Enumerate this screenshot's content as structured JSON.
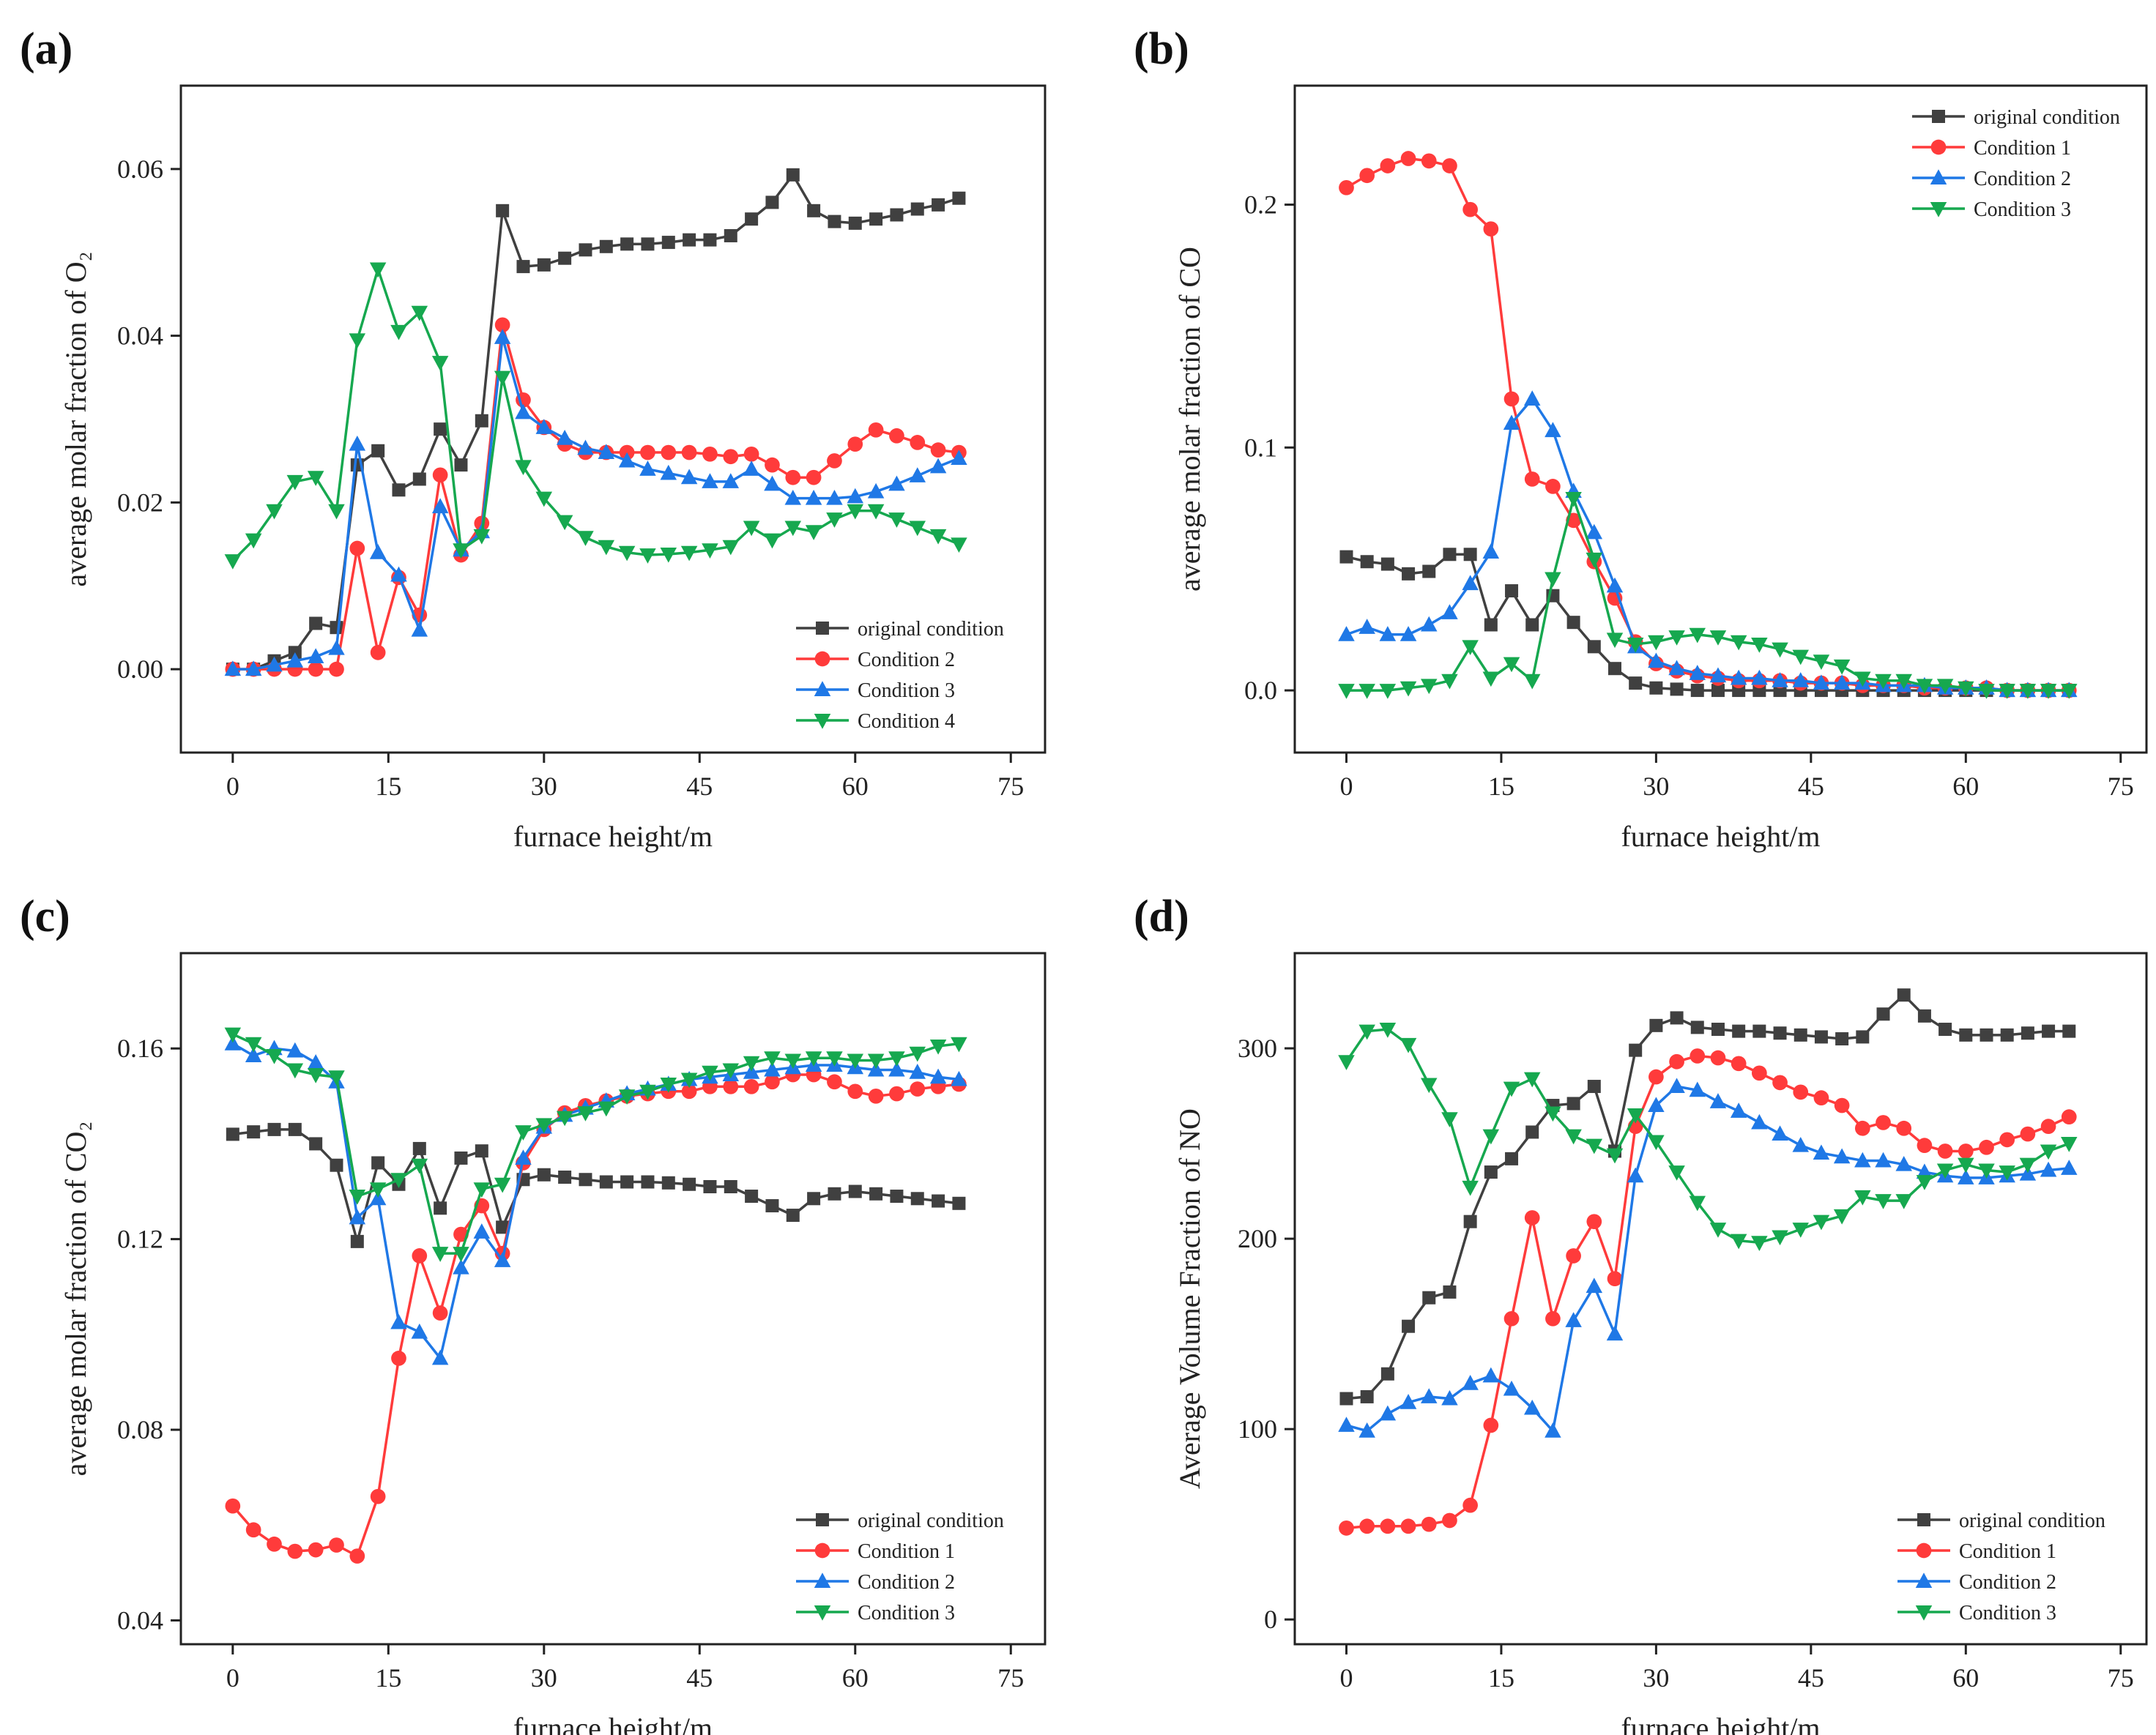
{
  "chart_data": [
    {
      "type": "line",
      "panel_label": "(a)",
      "xlabel": "furnace height/m",
      "ylabel": "average molar fraction of O₂",
      "xlim": [
        -5,
        78.3
      ],
      "ylim": [
        -0.01,
        0.07
      ],
      "xticks": [
        0,
        15,
        30,
        45,
        60,
        75
      ],
      "xtick_labels": [
        "0",
        "15",
        "30",
        "45",
        "60",
        "75"
      ],
      "yticks": [
        0,
        0.02,
        0.04,
        0.06
      ],
      "ytick_labels": [
        "0.00",
        "0.02",
        "0.04",
        "0.06"
      ],
      "legend_position": "bottom-right",
      "x": [
        0,
        2,
        4,
        6,
        8,
        10,
        12,
        14,
        16,
        18,
        20,
        22,
        24,
        26,
        28,
        30,
        32,
        34,
        36,
        38,
        40,
        42,
        44,
        46,
        48,
        50,
        52,
        54,
        56,
        58,
        60,
        62,
        64,
        66,
        68,
        70
      ],
      "series": [
        {
          "name": "original condition",
          "color": "#404040",
          "marker": "square",
          "values": [
            0,
            0,
            0.001,
            0.002,
            0.0055,
            0.005,
            0.0245,
            0.0262,
            0.0215,
            0.0228,
            0.0288,
            0.0245,
            0.0298,
            0.055,
            0.0483,
            0.0485,
            0.0493,
            0.0503,
            0.0507,
            0.051,
            0.051,
            0.0512,
            0.0515,
            0.0515,
            0.052,
            0.054,
            0.056,
            0.0593,
            0.055,
            0.0537,
            0.0535,
            0.054,
            0.0545,
            0.0552,
            0.0557,
            0.0565
          ]
        },
        {
          "name": "Condition 2",
          "color": "#ff3b3b",
          "marker": "circle",
          "values": [
            0,
            0,
            0,
            0,
            0,
            0,
            0.0145,
            0.002,
            0.011,
            0.0065,
            0.0233,
            0.0137,
            0.0175,
            0.0413,
            0.0323,
            0.029,
            0.027,
            0.026,
            0.026,
            0.026,
            0.026,
            0.026,
            0.026,
            0.0258,
            0.0255,
            0.0258,
            0.0245,
            0.023,
            0.023,
            0.025,
            0.027,
            0.0287,
            0.028,
            0.0272,
            0.0263,
            0.026
          ]
        },
        {
          "name": "Condition 3",
          "color": "#1f78e6",
          "marker": "triangle-up",
          "values": [
            0,
            0,
            0.0005,
            0.001,
            0.0015,
            0.0025,
            0.027,
            0.014,
            0.0113,
            0.0047,
            0.0195,
            0.0143,
            0.0165,
            0.0398,
            0.0308,
            0.029,
            0.0277,
            0.0265,
            0.026,
            0.025,
            0.024,
            0.0235,
            0.023,
            0.0225,
            0.0225,
            0.024,
            0.0222,
            0.0205,
            0.0205,
            0.0205,
            0.0207,
            0.0213,
            0.0222,
            0.0232,
            0.0243,
            0.0253
          ]
        },
        {
          "name": "Condition 4",
          "color": "#16a84f",
          "marker": "triangle-down",
          "values": [
            0.013,
            0.0155,
            0.019,
            0.0225,
            0.023,
            0.019,
            0.0395,
            0.048,
            0.0405,
            0.0428,
            0.0368,
            0.0143,
            0.016,
            0.035,
            0.0243,
            0.0205,
            0.0177,
            0.0158,
            0.0147,
            0.014,
            0.0137,
            0.0138,
            0.014,
            0.0143,
            0.0147,
            0.017,
            0.0155,
            0.017,
            0.0165,
            0.018,
            0.019,
            0.019,
            0.018,
            0.017,
            0.016,
            0.015
          ]
        }
      ]
    },
    {
      "type": "line",
      "panel_label": "(b)",
      "xlabel": "furnace height/m",
      "ylabel": "average molar fraction of CO",
      "xlim": [
        -5,
        77.5
      ],
      "ylim": [
        -0.0256,
        0.249
      ],
      "xticks": [
        0,
        15,
        30,
        45,
        60,
        75
      ],
      "xtick_labels": [
        "0",
        "15",
        "30",
        "45",
        "60",
        "75"
      ],
      "yticks": [
        0,
        0.1,
        0.2
      ],
      "ytick_labels": [
        "0.0",
        "0.1",
        "0.2"
      ],
      "legend_position": "top-right",
      "x": [
        0,
        2,
        4,
        6,
        8,
        10,
        12,
        14,
        16,
        18,
        20,
        22,
        24,
        26,
        28,
        30,
        32,
        34,
        36,
        38,
        40,
        42,
        44,
        46,
        48,
        50,
        52,
        54,
        56,
        58,
        60,
        62,
        64,
        66,
        68,
        70
      ],
      "series": [
        {
          "name": "original  condition",
          "color": "#404040",
          "marker": "square",
          "values": [
            0.055,
            0.053,
            0.052,
            0.048,
            0.049,
            0.056,
            0.056,
            0.027,
            0.041,
            0.027,
            0.039,
            0.028,
            0.018,
            0.009,
            0.003,
            0.001,
            0.0005,
            0,
            0,
            0,
            0,
            0,
            0,
            0,
            0,
            0,
            0,
            0,
            0,
            0,
            0,
            0,
            0,
            0,
            0,
            0
          ]
        },
        {
          "name": "Condition 1",
          "color": "#ff3b3b",
          "marker": "circle",
          "values": [
            0.207,
            0.212,
            0.216,
            0.219,
            0.218,
            0.216,
            0.198,
            0.19,
            0.12,
            0.087,
            0.084,
            0.07,
            0.053,
            0.038,
            0.02,
            0.011,
            0.008,
            0.006,
            0.005,
            0.004,
            0.004,
            0.004,
            0.003,
            0.003,
            0.003,
            0.002,
            0.002,
            0.002,
            0.001,
            0.001,
            0.001,
            0.001,
            0,
            0,
            0,
            0
          ]
        },
        {
          "name": "Condition 2",
          "color": "#1f78e6",
          "marker": "triangle-up",
          "values": [
            0.023,
            0.026,
            0.023,
            0.023,
            0.027,
            0.032,
            0.044,
            0.057,
            0.11,
            0.12,
            0.107,
            0.082,
            0.065,
            0.043,
            0.018,
            0.012,
            0.009,
            0.007,
            0.006,
            0.005,
            0.005,
            0.004,
            0.004,
            0.003,
            0.003,
            0.003,
            0.002,
            0.002,
            0.002,
            0.001,
            0.001,
            0.001,
            0,
            0,
            0,
            0
          ]
        },
        {
          "name": "Condition 3",
          "color": "#16a84f",
          "marker": "triangle-down",
          "values": [
            0,
            0,
            0,
            0.001,
            0.002,
            0.004,
            0.018,
            0.005,
            0.011,
            0.004,
            0.046,
            0.079,
            0.054,
            0.021,
            0.019,
            0.02,
            0.022,
            0.023,
            0.022,
            0.02,
            0.019,
            0.017,
            0.014,
            0.012,
            0.01,
            0.005,
            0.004,
            0.004,
            0.002,
            0.002,
            0.001,
            0,
            0,
            0,
            0,
            0
          ]
        }
      ]
    },
    {
      "type": "line",
      "panel_label": "(c)",
      "xlabel": "furnace height/m",
      "ylabel": "average molar fraction of CO₂",
      "xlim": [
        -5,
        78.3
      ],
      "ylim": [
        0.035,
        0.18
      ],
      "xticks": [
        0,
        15,
        30,
        45,
        60,
        75
      ],
      "xtick_labels": [
        "0",
        "15",
        "30",
        "45",
        "60",
        "75"
      ],
      "yticks": [
        0.04,
        0.08,
        0.12,
        0.16
      ],
      "ytick_labels": [
        "0.04",
        "0.08",
        "0.12",
        "0.16"
      ],
      "legend_position": "bottom-right",
      "x": [
        0,
        2,
        4,
        6,
        8,
        10,
        12,
        14,
        16,
        18,
        20,
        22,
        24,
        26,
        28,
        30,
        32,
        34,
        36,
        38,
        40,
        42,
        44,
        46,
        48,
        50,
        52,
        54,
        56,
        58,
        60,
        62,
        64,
        66,
        68,
        70
      ],
      "series": [
        {
          "name": "original condition",
          "color": "#404040",
          "marker": "square",
          "values": [
            0.142,
            0.1425,
            0.143,
            0.143,
            0.14,
            0.1355,
            0.1195,
            0.136,
            0.1315,
            0.139,
            0.1265,
            0.137,
            0.1385,
            0.1225,
            0.1325,
            0.1335,
            0.133,
            0.1325,
            0.132,
            0.132,
            0.132,
            0.1318,
            0.1315,
            0.131,
            0.131,
            0.129,
            0.127,
            0.125,
            0.1285,
            0.1295,
            0.13,
            0.1295,
            0.129,
            0.1285,
            0.128,
            0.1275
          ]
        },
        {
          "name": "Condition 1",
          "color": "#ff3b3b",
          "marker": "circle",
          "values": [
            0.064,
            0.059,
            0.056,
            0.0545,
            0.0548,
            0.0558,
            0.0535,
            0.066,
            0.095,
            0.1165,
            0.1045,
            0.121,
            0.127,
            0.117,
            0.136,
            0.143,
            0.1465,
            0.148,
            0.149,
            0.15,
            0.1505,
            0.151,
            0.151,
            0.152,
            0.152,
            0.152,
            0.153,
            0.1545,
            0.1545,
            0.153,
            0.151,
            0.15,
            0.1505,
            0.1515,
            0.152,
            0.1525
          ]
        },
        {
          "name": "Condition 2",
          "color": "#1f78e6",
          "marker": "triangle-up",
          "values": [
            0.161,
            0.1585,
            0.16,
            0.1595,
            0.157,
            0.153,
            0.1245,
            0.1285,
            0.1025,
            0.1005,
            0.095,
            0.114,
            0.1215,
            0.1155,
            0.137,
            0.1435,
            0.146,
            0.1475,
            0.149,
            0.1505,
            0.1515,
            0.1525,
            0.1535,
            0.154,
            0.1545,
            0.155,
            0.1555,
            0.156,
            0.1565,
            0.1565,
            0.156,
            0.1555,
            0.1555,
            0.155,
            0.154,
            0.1535
          ]
        },
        {
          "name": "Condition 3",
          "color": "#16a84f",
          "marker": "triangle-down",
          "values": [
            0.163,
            0.161,
            0.1585,
            0.1555,
            0.1545,
            0.154,
            0.129,
            0.1305,
            0.1325,
            0.1355,
            0.117,
            0.117,
            0.1305,
            0.1315,
            0.1425,
            0.144,
            0.1455,
            0.1465,
            0.1475,
            0.15,
            0.151,
            0.1525,
            0.1535,
            0.155,
            0.1555,
            0.157,
            0.158,
            0.1575,
            0.158,
            0.158,
            0.1575,
            0.1575,
            0.158,
            0.159,
            0.1605,
            0.161
          ]
        }
      ]
    },
    {
      "type": "line",
      "panel_label": "(d)",
      "xlabel": "furnace height/m",
      "ylabel": "Average Volume Fraction of NO",
      "xlim": [
        -5,
        77.5
      ],
      "ylim": [
        -13,
        350
      ],
      "xticks": [
        0,
        15,
        30,
        45,
        60,
        75
      ],
      "xtick_labels": [
        "0",
        "15",
        "30",
        "45",
        "60",
        "75"
      ],
      "yticks": [
        0,
        100,
        200,
        300
      ],
      "ytick_labels": [
        "0",
        "100",
        "200",
        "300"
      ],
      "legend_position": "bottom-right",
      "x": [
        0,
        2,
        4,
        6,
        8,
        10,
        12,
        14,
        16,
        18,
        20,
        22,
        24,
        26,
        28,
        30,
        32,
        34,
        36,
        38,
        40,
        42,
        44,
        46,
        48,
        50,
        52,
        54,
        56,
        58,
        60,
        62,
        64,
        66,
        68,
        70
      ],
      "series": [
        {
          "name": "original condition",
          "color": "#404040",
          "marker": "square",
          "values": [
            116,
            117,
            129,
            154,
            169,
            172,
            209,
            235,
            242,
            256,
            270,
            271,
            280,
            246,
            299,
            312,
            316,
            311,
            310,
            309,
            309,
            308,
            307,
            306,
            305,
            306,
            318,
            328,
            317,
            310,
            307,
            307,
            307,
            308,
            309,
            309
          ]
        },
        {
          "name": "Condition 1",
          "color": "#ff3b3b",
          "marker": "circle",
          "values": [
            48,
            49,
            49,
            49,
            50,
            52,
            60,
            102,
            158,
            211,
            158,
            191,
            209,
            179,
            259,
            285,
            293,
            296,
            295,
            292,
            287,
            282,
            277,
            274,
            270,
            258,
            261,
            258,
            249,
            246,
            246,
            248,
            252,
            255,
            259,
            264
          ]
        },
        {
          "name": "Condition 2",
          "color": "#1f78e6",
          "marker": "triangle-up",
          "values": [
            102,
            99,
            108,
            114,
            117,
            116,
            124,
            128,
            121,
            111,
            99,
            157,
            175,
            150,
            233,
            270,
            280,
            278,
            272,
            267,
            261,
            255,
            249,
            245,
            243,
            241,
            241,
            239,
            235,
            233,
            232,
            232,
            233,
            234,
            236,
            237
          ]
        },
        {
          "name": "Condition 3",
          "color": "#16a84f",
          "marker": "triangle-down",
          "values": [
            293,
            309,
            310,
            302,
            281,
            263,
            227,
            254,
            279,
            284,
            266,
            254,
            249,
            244,
            265,
            251,
            235,
            219,
            205,
            199,
            198,
            201,
            205,
            209,
            212,
            222,
            220,
            220,
            230,
            236,
            239,
            236,
            235,
            239,
            246,
            250
          ]
        }
      ]
    }
  ]
}
